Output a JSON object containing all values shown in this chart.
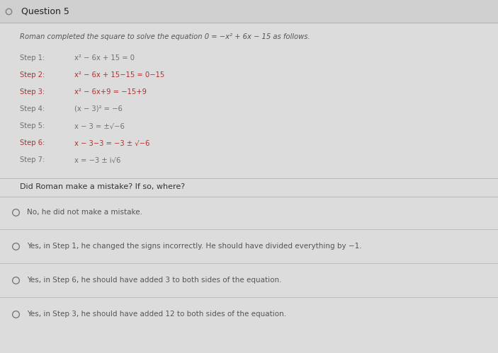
{
  "title": "Question 5",
  "background_color": "#c8c8c8",
  "content_bg": "#dcdcdc",
  "title_bg": "#d0d0d0",
  "intro_text": "Roman completed the square to solve the equation 0 = −x² + 6x − 15 as follows.",
  "steps": [
    {
      "label": "Step 1:",
      "text": "x² − 6x + 15 = 0",
      "highlight": false
    },
    {
      "label": "Step 2:",
      "text": "x² − 6x + 15−15 = 0−15",
      "highlight": true
    },
    {
      "label": "Step 3:",
      "text": "x² − 6x+9 = −15+9",
      "highlight": true
    },
    {
      "label": "Step 4:",
      "text": "(x − 3)² = −6",
      "highlight": false
    },
    {
      "label": "Step 5:",
      "text": "x − 3 = ±√−6",
      "highlight": false
    },
    {
      "label": "Step 6:",
      "text": "x − 3−3 = −3 ± √−6",
      "highlight": true
    },
    {
      "label": "Step 7:",
      "text": "x = −3 ± i√6",
      "highlight": false
    }
  ],
  "question_text": "Did Roman make a mistake? If so, where?",
  "options": [
    "No, he did not make a mistake.",
    "Yes, in Step 1, he changed the signs incorrectly. He should have divided everything by −1.",
    "Yes, in Step 6, he should have added 3 to both sides of the equation.",
    "Yes, in Step 3, he should have added 12 to both sides of the equation."
  ],
  "highlight_color": "#b03030",
  "normal_color": "#707070",
  "intro_color": "#555555",
  "question_color": "#333333",
  "option_text_color": "#555555",
  "circle_color": "#707070",
  "title_color": "#222222",
  "sep_color": "#b8b8b8"
}
